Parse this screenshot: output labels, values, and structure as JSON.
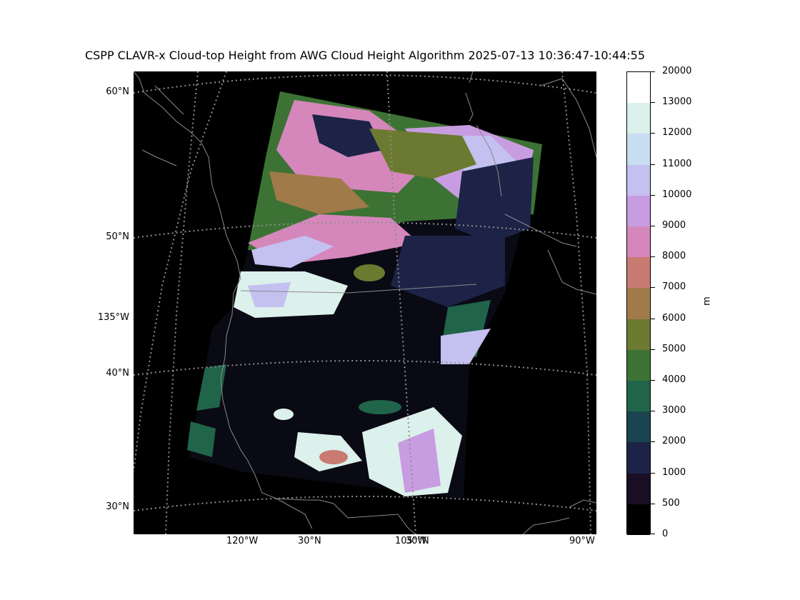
{
  "title": "CSPP CLAVR-x Cloud-top Height from AWG Cloud Height Algorithm 2025-07-13 10:36:47-10:44:55",
  "lat_labels": [
    "60°N",
    "50°N",
    "40°N",
    "30°N",
    "135°W"
  ],
  "lon_labels": [
    "120°W",
    "30°N",
    "105°W",
    "30°N",
    "90°W"
  ],
  "colorbar": {
    "unit": "m",
    "ticks": [
      "20000",
      "13000",
      "12000",
      "11000",
      "10000",
      "9000",
      "8000",
      "7000",
      "6000",
      "5000",
      "4000",
      "3000",
      "2000",
      "1000",
      "500",
      "0"
    ],
    "colors": [
      "#ffffff",
      "#dcf0ec",
      "#c8ddf0",
      "#c4c0f0",
      "#c89ce0",
      "#d587bb",
      "#c97a72",
      "#a17a4a",
      "#6b7a30",
      "#3c7334",
      "#20644a",
      "#1b4450",
      "#1c2347",
      "#1a0e25",
      "#000000"
    ]
  },
  "colors": {
    "background": "#000000",
    "coastline": "#8a8a8a",
    "graticule": "#8f8f8f"
  }
}
